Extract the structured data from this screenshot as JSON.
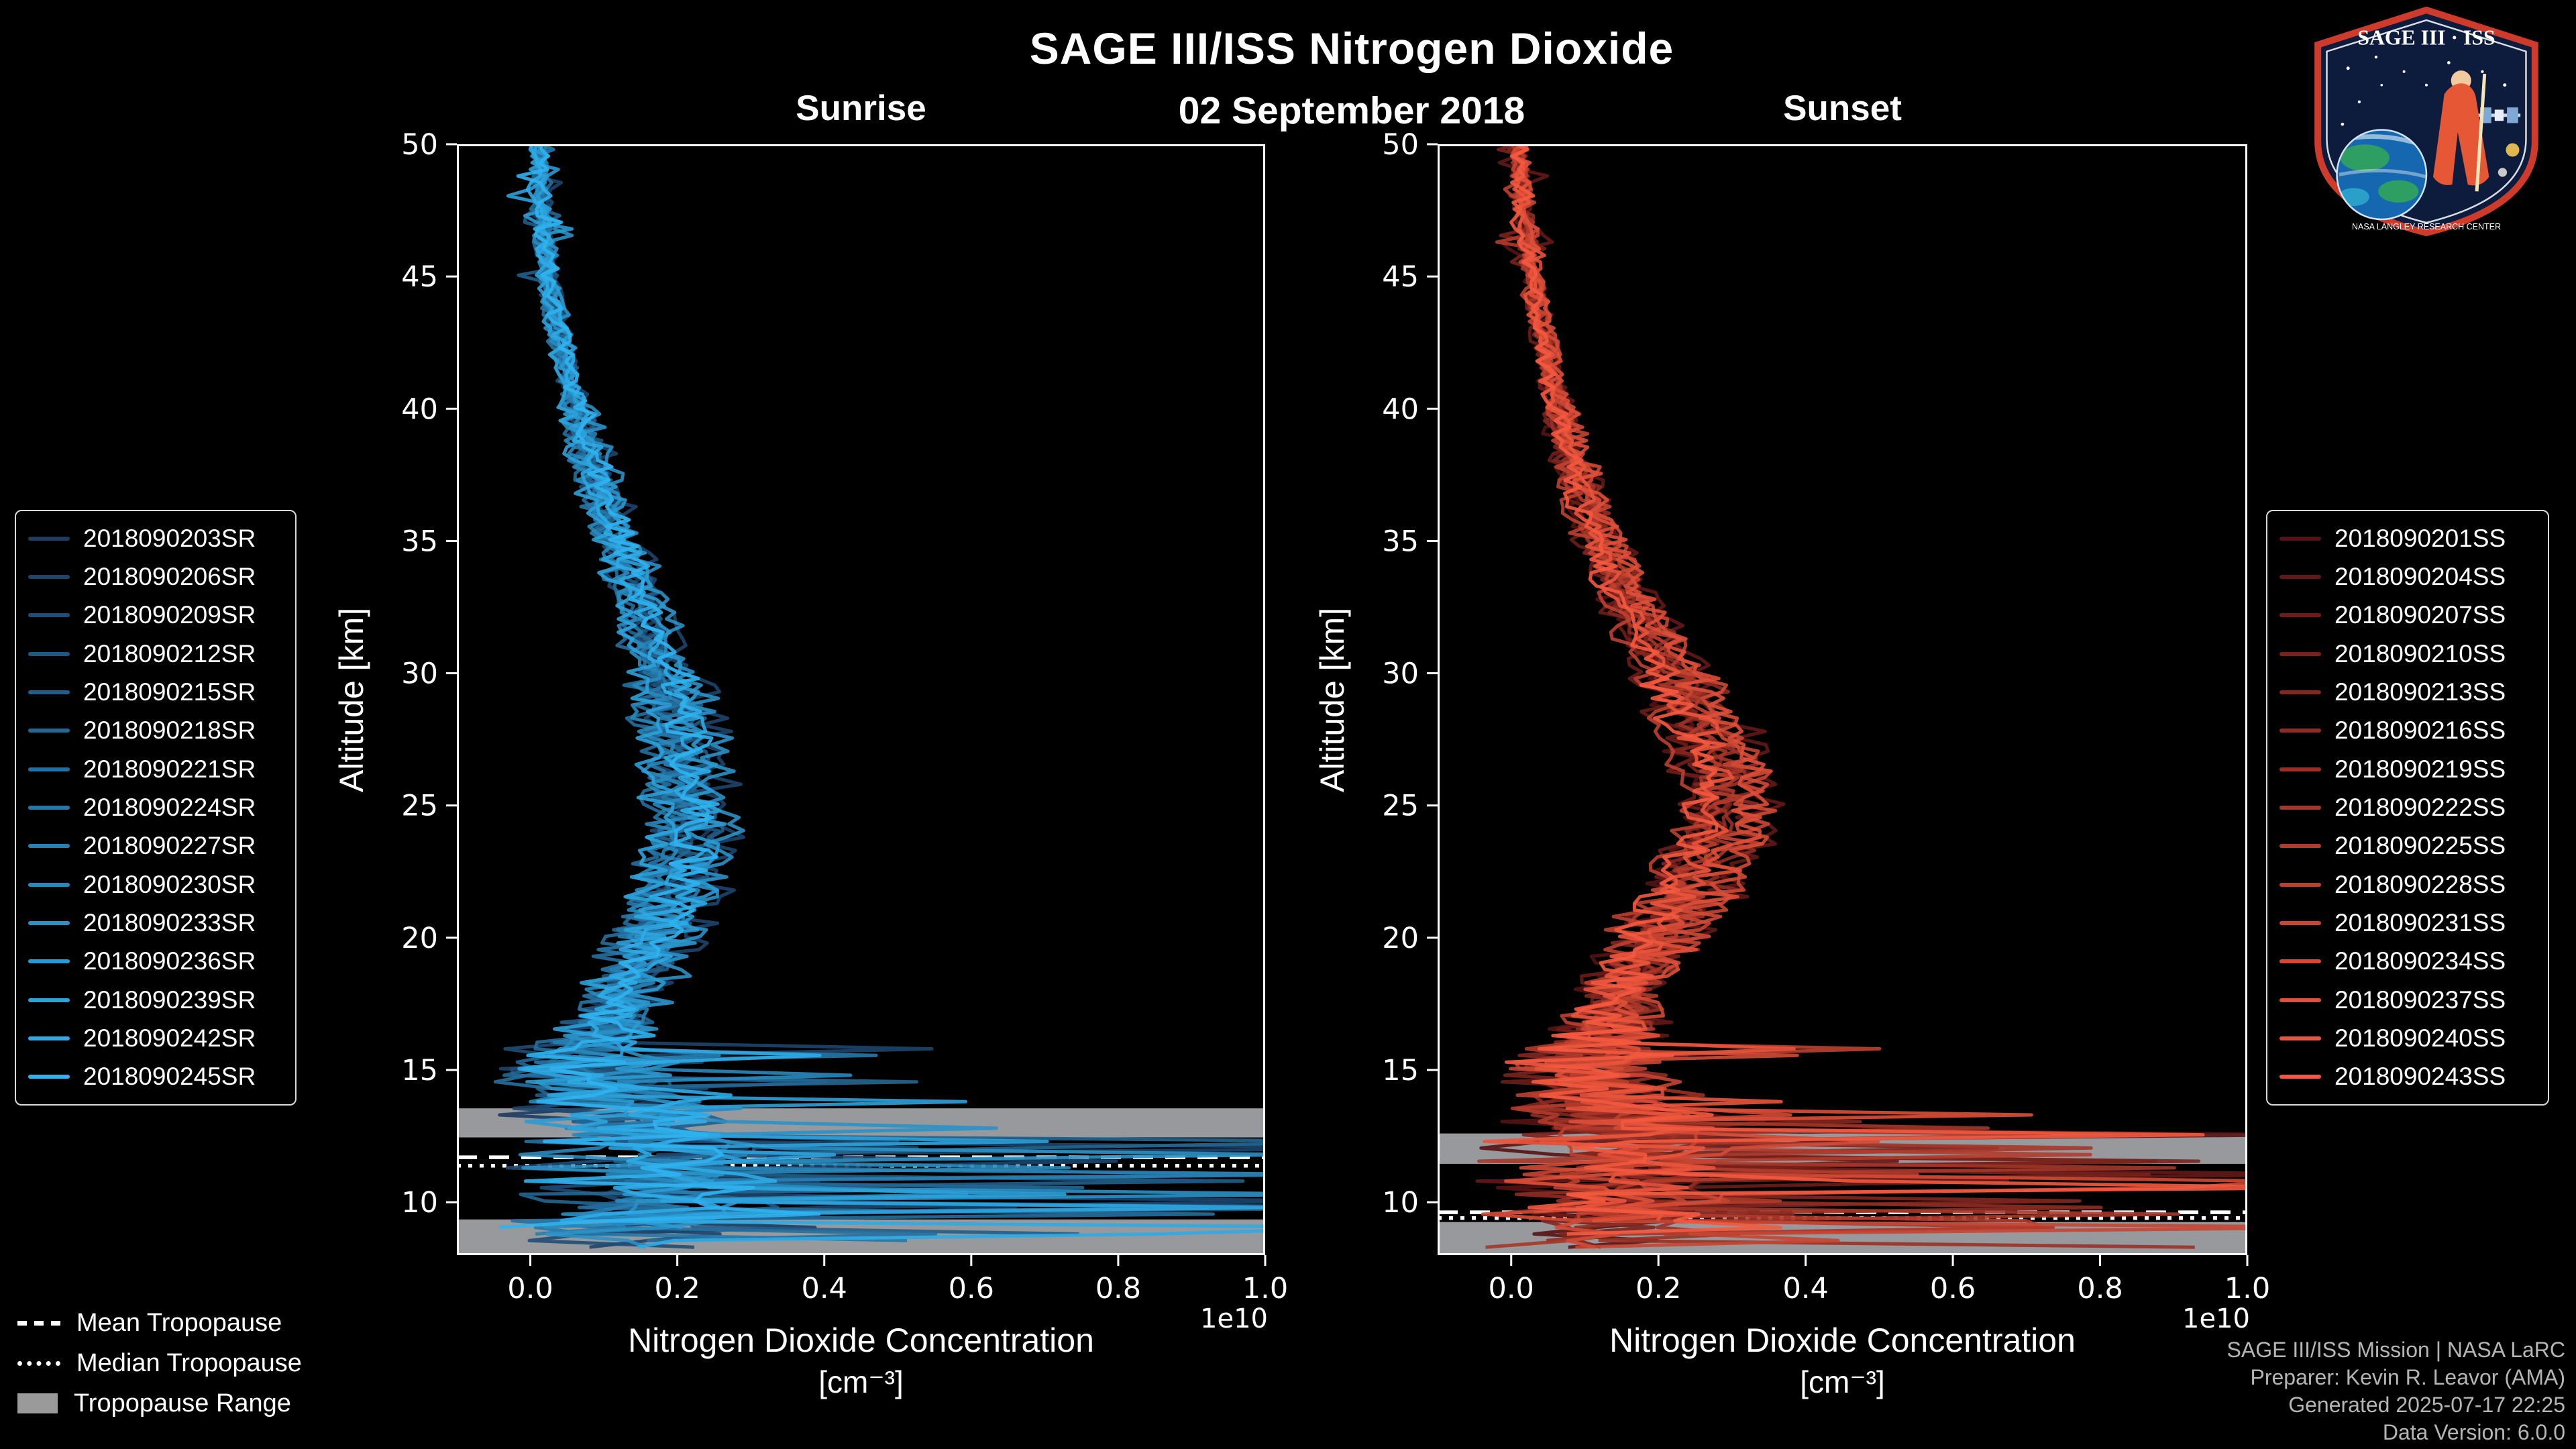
{
  "title": "SAGE III/ISS Nitrogen Dioxide",
  "date": "02 September 2018",
  "logo": {
    "text": "SAGE III · ISS",
    "subtext": "NASA LANGLEY RESEARCH CENTER"
  },
  "tropopause_legend": {
    "mean": "Mean Tropopause",
    "median": "Median Tropopause",
    "range": "Tropopause Range"
  },
  "credits": {
    "line1": "SAGE III/ISS Mission | NASA LaRC",
    "line2": "Preparer: Kevin R. Leavor (AMA)",
    "line3": "Generated 2025-07-17 22:25",
    "line4": "Data Version: 6.0.0"
  },
  "chart_data": [
    {
      "type": "line",
      "title": "Sunrise",
      "ylabel": "Altitude [km]",
      "xlabel": "Nitrogen Dioxide Concentration",
      "xlabel_units": "[cm⁻³]",
      "x_offset_label": "1e10",
      "xlim": [
        -0.1,
        1.0
      ],
      "ylim": [
        8.0,
        50.0
      ],
      "xticks": [
        0.0,
        0.2,
        0.4,
        0.6,
        0.8,
        1.0
      ],
      "yticks": [
        10,
        15,
        20,
        25,
        30,
        35,
        40,
        45,
        50
      ],
      "color_start": "#1c3c62",
      "color_end": "#2fb3ef",
      "series": [
        "2018090203SR",
        "2018090206SR",
        "2018090209SR",
        "2018090212SR",
        "2018090215SR",
        "2018090218SR",
        "2018090221SR",
        "2018090224SR",
        "2018090227SR",
        "2018090230SR",
        "2018090233SR",
        "2018090236SR",
        "2018090239SR",
        "2018090242SR",
        "2018090245SR"
      ],
      "profile": {
        "altitude_km": [
          50,
          48,
          46,
          44,
          42,
          40,
          38,
          36,
          34,
          32,
          30,
          28,
          26,
          24,
          22,
          20,
          18,
          16,
          15,
          14,
          13,
          12,
          11,
          10,
          9,
          8
        ],
        "mean_concentration_1e10": [
          0.01,
          0.014,
          0.02,
          0.03,
          0.045,
          0.06,
          0.082,
          0.105,
          0.13,
          0.155,
          0.178,
          0.196,
          0.21,
          0.214,
          0.2,
          0.168,
          0.128,
          0.088,
          0.072,
          0.1,
          0.15,
          0.2,
          0.22,
          0.18,
          0.12,
          0.08
        ]
      },
      "tropopause": {
        "mean_km": 11.7,
        "median_km": 11.38,
        "range_km": [
          8.6,
          13.55
        ],
        "visible_bands_km": [
          [
            12.45,
            13.55
          ],
          [
            8.0,
            9.35
          ]
        ]
      }
    },
    {
      "type": "line",
      "title": "Sunset",
      "ylabel": "Altitude [km]",
      "xlabel": "Nitrogen Dioxide Concentration",
      "xlabel_units": "[cm⁻³]",
      "x_offset_label": "1e10",
      "xlim": [
        -0.1,
        1.0
      ],
      "ylim": [
        8.0,
        50.0
      ],
      "xticks": [
        0.0,
        0.2,
        0.4,
        0.6,
        0.8,
        1.0
      ],
      "yticks": [
        10,
        15,
        20,
        25,
        30,
        35,
        40,
        45,
        50
      ],
      "color_start": "#571313",
      "color_end": "#f4593f",
      "series": [
        "2018090201SS",
        "2018090204SS",
        "2018090207SS",
        "2018090210SS",
        "2018090213SS",
        "2018090216SS",
        "2018090219SS",
        "2018090222SS",
        "2018090225SS",
        "2018090228SS",
        "2018090231SS",
        "2018090234SS",
        "2018090237SS",
        "2018090240SS",
        "2018090243SS"
      ],
      "profile": {
        "altitude_km": [
          50,
          48,
          46,
          44,
          42,
          40,
          38,
          36,
          34,
          32,
          30,
          28,
          26,
          24,
          22,
          20,
          18,
          16,
          15,
          14,
          13,
          12,
          11,
          10,
          9,
          8
        ],
        "mean_concentration_1e10": [
          0.01,
          0.016,
          0.024,
          0.034,
          0.048,
          0.065,
          0.085,
          0.108,
          0.138,
          0.175,
          0.22,
          0.262,
          0.29,
          0.283,
          0.243,
          0.196,
          0.155,
          0.12,
          0.1,
          0.12,
          0.15,
          0.18,
          0.2,
          0.17,
          0.14,
          0.1
        ]
      },
      "tropopause": {
        "mean_km": 9.62,
        "median_km": 9.4,
        "range_km": [
          8.6,
          12.6
        ],
        "visible_bands_km": [
          [
            11.45,
            12.6
          ],
          [
            8.0,
            9.25
          ]
        ]
      }
    }
  ]
}
